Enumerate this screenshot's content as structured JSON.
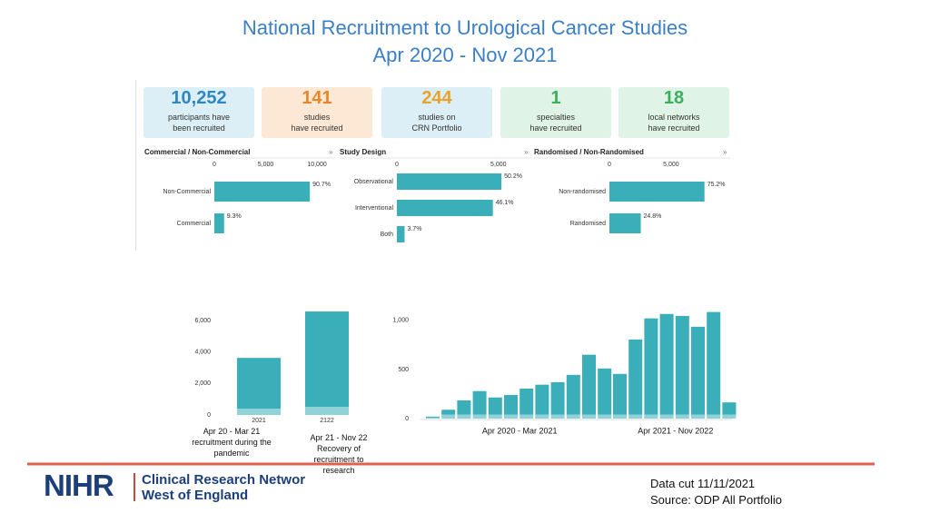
{
  "header": {
    "title": "National Recruitment to Urological Cancer Studies",
    "subtitle": "Apr 2020 - Nov 2021"
  },
  "cards": [
    {
      "value": "10,252",
      "label": "participants have\nbeen recruited"
    },
    {
      "value": "141",
      "label": "studies\nhave recruited"
    },
    {
      "value": "244",
      "label": "studies on\nCRN Portfolio"
    },
    {
      "value": "1",
      "label": "specialties\nhave recruited"
    },
    {
      "value": "18",
      "label": "local networks\nhave recruited"
    }
  ],
  "chart_data": [
    {
      "type": "hbar",
      "title": "Commercial / Non-Commercial",
      "categories": [
        "Non-Commercial",
        "Commercial"
      ],
      "values": [
        9299,
        953
      ],
      "value_labels": [
        "90.7%",
        "9.3%"
      ],
      "color": "#3aafb9",
      "xlim": [
        0,
        11500
      ],
      "xticks": [
        0,
        {
          "value": 5000,
          "label": "5,000"
        },
        {
          "value": 10000,
          "label": "10,000"
        }
      ]
    },
    {
      "type": "hbar",
      "title": "Study Design",
      "categories": [
        "Observational",
        "Interventional",
        "Both"
      ],
      "values": [
        5147,
        4726,
        379
      ],
      "value_labels": [
        "50.2%",
        "46.1%",
        "3.7%"
      ],
      "color": "#3aafb9",
      "xlim": [
        0,
        5500
      ],
      "xticks": [
        0,
        {
          "value": 5000,
          "label": "5,000"
        }
      ]
    },
    {
      "type": "hbar",
      "title": "Randomised / Non-Randomised",
      "categories": [
        "Non-randomised",
        "Randomised"
      ],
      "values": [
        7710,
        2542
      ],
      "value_labels": [
        "75.2%",
        "24.8%"
      ],
      "color": "#3aafb9",
      "xlim": [
        0,
        9500
      ],
      "xticks": [
        0,
        {
          "value": 5000,
          "label": "5,000"
        }
      ]
    },
    {
      "type": "stacked-bar",
      "categories": [
        "2021",
        "2122"
      ],
      "series": [
        {
          "color": "#8fd3d8",
          "values": [
            400,
            520
          ]
        },
        {
          "color": "#3aafb9",
          "values": [
            3230,
            6060
          ]
        }
      ],
      "ylim": [
        0,
        6700
      ],
      "yticks": [
        0,
        {
          "value": 2000,
          "label": "2,000"
        },
        {
          "value": 4000,
          "label": "4,000"
        },
        {
          "value": 6000,
          "label": "6,000"
        }
      ],
      "annotations": [
        "Apr  20 - Mar 21\nrecruitment during the\npandemic",
        "Apr 21 - Nov 22\nRecovery of\nrecruitment to\nresearch"
      ]
    },
    {
      "type": "grouped-stacked-bar",
      "ylim": [
        0,
        1100
      ],
      "yticks": [
        0,
        500,
        {
          "value": 1000,
          "label": "1,000"
        }
      ],
      "groups": [
        {
          "label": "Apr 2020 - Mar 2021",
          "series": [
            {
              "color": "#8fd3d8",
              "values": [
                10,
                40,
                40,
                40,
                40,
                40,
                40,
                40,
                40,
                40,
                40,
                40
              ]
            },
            {
              "color": "#3aafb9",
              "values": [
                10,
                50,
                145,
                240,
                175,
                200,
                265,
                305,
                330,
                405,
                610,
                470
              ]
            }
          ]
        },
        {
          "label": "Apr 2021 - Nov 2022",
          "series": [
            {
              "color": "#8fd3d8",
              "values": [
                40,
                40,
                40,
                40,
                40,
                40,
                40,
                40
              ]
            },
            {
              "color": "#3aafb9",
              "values": [
                415,
                765,
                980,
                1025,
                1005,
                895,
                1045,
                125
              ]
            }
          ]
        }
      ]
    }
  ],
  "footer": {
    "logo": "NIHR",
    "network": "Clinical Research Networ",
    "region": "West of England",
    "note": "Data cut 11/11/2021\nSource: ODP All Portfolio"
  }
}
